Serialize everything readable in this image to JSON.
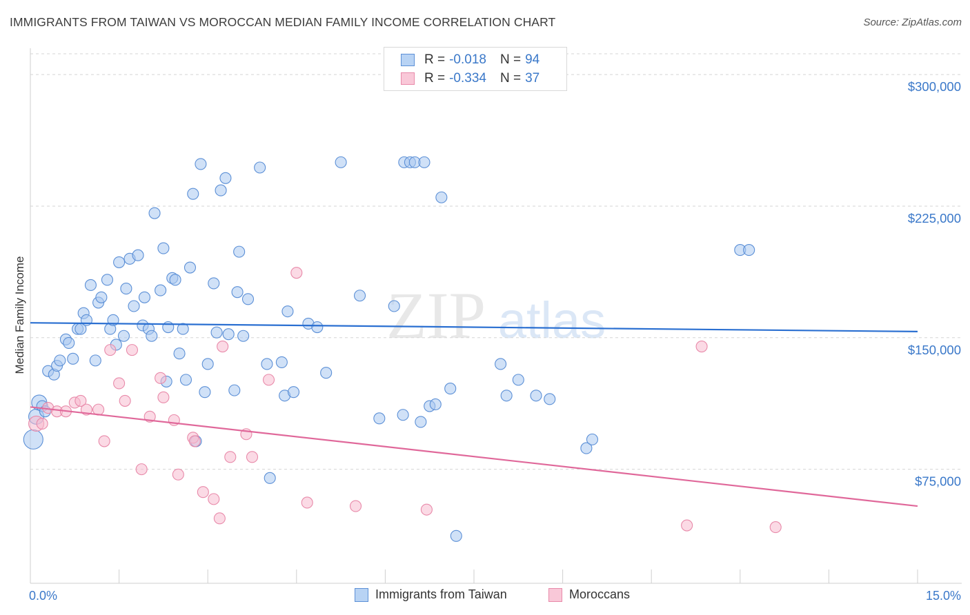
{
  "title": "IMMIGRANTS FROM TAIWAN VS MOROCCAN MEDIAN FAMILY INCOME CORRELATION CHART",
  "source": "Source: ZipAtlas.com",
  "watermark": {
    "zip": "ZIP",
    "atlas": "atlas"
  },
  "legend": {
    "rows": [
      {
        "r_label": "R =",
        "r_value": "-0.018",
        "n_label": "N =",
        "n_value": "94"
      },
      {
        "r_label": "R =",
        "r_value": "-0.334",
        "n_label": "N =",
        "n_value": "37"
      }
    ]
  },
  "bottom_legend": {
    "taiwan": "Immigrants from Taiwan",
    "moroccans": "Moroccans"
  },
  "colors": {
    "taiwan_fill": "#a9c8f0",
    "taiwan_stroke": "#5b8fd6",
    "taiwan_line": "#2a6fd1",
    "moroccan_fill": "#f7bcd0",
    "moroccan_stroke": "#e889a9",
    "moroccan_line": "#e0689a",
    "tick_text": "#3a78c9",
    "grid": "#d5d5d5"
  },
  "chart_data": {
    "type": "scatter",
    "title": "IMMIGRANTS FROM TAIWAN VS MOROCCAN MEDIAN FAMILY INCOME CORRELATION CHART",
    "xlabel": "",
    "ylabel": "Median Family Income",
    "xlim": [
      0,
      15
    ],
    "ylim": [
      10000,
      315000
    ],
    "x_tick_labels": [
      "0.0%",
      "15.0%"
    ],
    "y_ticks": [
      75000,
      150000,
      225000,
      300000
    ],
    "y_tick_labels": [
      "$75,000",
      "$150,000",
      "$225,000",
      "$300,000"
    ],
    "series": [
      {
        "name": "Immigrants from Taiwan",
        "R": -0.018,
        "N": 94,
        "trend": {
          "x": [
            0,
            15
          ],
          "y": [
            158500,
            153500
          ]
        },
        "points": [
          {
            "x": 0.05,
            "y": 92000,
            "s": 3
          },
          {
            "x": 0.1,
            "y": 105000,
            "s": 2
          },
          {
            "x": 0.15,
            "y": 113000,
            "s": 2
          },
          {
            "x": 0.2,
            "y": 111000,
            "s": 1
          },
          {
            "x": 0.25,
            "y": 108000,
            "s": 1
          },
          {
            "x": 0.3,
            "y": 131000,
            "s": 1
          },
          {
            "x": 0.4,
            "y": 129000,
            "s": 1
          },
          {
            "x": 0.45,
            "y": 134000,
            "s": 1
          },
          {
            "x": 0.5,
            "y": 137000,
            "s": 1
          },
          {
            "x": 0.6,
            "y": 149000,
            "s": 1
          },
          {
            "x": 0.65,
            "y": 147000,
            "s": 1
          },
          {
            "x": 0.72,
            "y": 138000,
            "s": 1
          },
          {
            "x": 0.8,
            "y": 155000,
            "s": 1
          },
          {
            "x": 0.85,
            "y": 155000,
            "s": 1
          },
          {
            "x": 0.9,
            "y": 164000,
            "s": 1
          },
          {
            "x": 0.95,
            "y": 160000,
            "s": 1
          },
          {
            "x": 1.02,
            "y": 180000,
            "s": 1
          },
          {
            "x": 1.1,
            "y": 137000,
            "s": 1
          },
          {
            "x": 1.15,
            "y": 170000,
            "s": 1
          },
          {
            "x": 1.2,
            "y": 173000,
            "s": 1
          },
          {
            "x": 1.3,
            "y": 183000,
            "s": 1
          },
          {
            "x": 1.35,
            "y": 155000,
            "s": 1
          },
          {
            "x": 1.4,
            "y": 160000,
            "s": 1
          },
          {
            "x": 1.45,
            "y": 146000,
            "s": 1
          },
          {
            "x": 1.5,
            "y": 193000,
            "s": 1
          },
          {
            "x": 1.58,
            "y": 151000,
            "s": 1
          },
          {
            "x": 1.62,
            "y": 178000,
            "s": 1
          },
          {
            "x": 1.68,
            "y": 195000,
            "s": 1
          },
          {
            "x": 1.75,
            "y": 168000,
            "s": 1
          },
          {
            "x": 1.82,
            "y": 197000,
            "s": 1
          },
          {
            "x": 1.9,
            "y": 157000,
            "s": 1
          },
          {
            "x": 1.93,
            "y": 173000,
            "s": 1
          },
          {
            "x": 2.0,
            "y": 155000,
            "s": 1
          },
          {
            "x": 2.05,
            "y": 151000,
            "s": 1
          },
          {
            "x": 2.1,
            "y": 221000,
            "s": 1
          },
          {
            "x": 2.2,
            "y": 177000,
            "s": 1
          },
          {
            "x": 2.25,
            "y": 201000,
            "s": 1
          },
          {
            "x": 2.3,
            "y": 125000,
            "s": 1
          },
          {
            "x": 2.33,
            "y": 156000,
            "s": 1
          },
          {
            "x": 2.4,
            "y": 184000,
            "s": 1
          },
          {
            "x": 2.45,
            "y": 183000,
            "s": 1
          },
          {
            "x": 2.52,
            "y": 141000,
            "s": 1
          },
          {
            "x": 2.58,
            "y": 155000,
            "s": 1
          },
          {
            "x": 2.63,
            "y": 126000,
            "s": 1
          },
          {
            "x": 2.7,
            "y": 190000,
            "s": 1
          },
          {
            "x": 2.75,
            "y": 232000,
            "s": 1
          },
          {
            "x": 2.8,
            "y": 91000,
            "s": 1
          },
          {
            "x": 2.88,
            "y": 249000,
            "s": 1
          },
          {
            "x": 2.95,
            "y": 119000,
            "s": 1
          },
          {
            "x": 3.0,
            "y": 135000,
            "s": 1
          },
          {
            "x": 3.1,
            "y": 181000,
            "s": 1
          },
          {
            "x": 3.15,
            "y": 153000,
            "s": 1
          },
          {
            "x": 3.22,
            "y": 234000,
            "s": 1
          },
          {
            "x": 3.3,
            "y": 241000,
            "s": 1
          },
          {
            "x": 3.35,
            "y": 152000,
            "s": 1
          },
          {
            "x": 3.45,
            "y": 120000,
            "s": 1
          },
          {
            "x": 3.5,
            "y": 176000,
            "s": 1
          },
          {
            "x": 3.53,
            "y": 199000,
            "s": 1
          },
          {
            "x": 3.6,
            "y": 151000,
            "s": 1
          },
          {
            "x": 3.68,
            "y": 172000,
            "s": 1
          },
          {
            "x": 3.88,
            "y": 247000,
            "s": 1
          },
          {
            "x": 4.0,
            "y": 135000,
            "s": 1
          },
          {
            "x": 4.05,
            "y": 70000,
            "s": 1
          },
          {
            "x": 4.25,
            "y": 136000,
            "s": 1
          },
          {
            "x": 4.3,
            "y": 117000,
            "s": 1
          },
          {
            "x": 4.35,
            "y": 165000,
            "s": 1
          },
          {
            "x": 4.45,
            "y": 119000,
            "s": 1
          },
          {
            "x": 4.7,
            "y": 158000,
            "s": 1
          },
          {
            "x": 4.85,
            "y": 156000,
            "s": 1
          },
          {
            "x": 5.0,
            "y": 130000,
            "s": 1
          },
          {
            "x": 5.25,
            "y": 250000,
            "s": 1
          },
          {
            "x": 5.57,
            "y": 174000,
            "s": 1
          },
          {
            "x": 5.9,
            "y": 104000,
            "s": 1
          },
          {
            "x": 6.15,
            "y": 168000,
            "s": 1
          },
          {
            "x": 6.3,
            "y": 106000,
            "s": 1
          },
          {
            "x": 6.32,
            "y": 250000,
            "s": 1
          },
          {
            "x": 6.42,
            "y": 250000,
            "s": 1
          },
          {
            "x": 6.5,
            "y": 250000,
            "s": 1
          },
          {
            "x": 6.6,
            "y": 102000,
            "s": 1
          },
          {
            "x": 6.66,
            "y": 250000,
            "s": 1
          },
          {
            "x": 6.75,
            "y": 111000,
            "s": 1
          },
          {
            "x": 6.85,
            "y": 112000,
            "s": 1
          },
          {
            "x": 6.95,
            "y": 230000,
            "s": 1
          },
          {
            "x": 7.1,
            "y": 121000,
            "s": 1
          },
          {
            "x": 7.2,
            "y": 37000,
            "s": 1
          },
          {
            "x": 7.95,
            "y": 135000,
            "s": 1
          },
          {
            "x": 8.05,
            "y": 117000,
            "s": 1
          },
          {
            "x": 8.25,
            "y": 126000,
            "s": 1
          },
          {
            "x": 8.55,
            "y": 117000,
            "s": 1
          },
          {
            "x": 8.78,
            "y": 115000,
            "s": 1
          },
          {
            "x": 9.4,
            "y": 87000,
            "s": 1
          },
          {
            "x": 9.5,
            "y": 92000,
            "s": 1
          },
          {
            "x": 12.0,
            "y": 200000,
            "s": 1
          },
          {
            "x": 12.15,
            "y": 200000,
            "s": 1
          }
        ]
      },
      {
        "name": "Moroccans",
        "R": -0.334,
        "N": 37,
        "trend": {
          "x": [
            0,
            15
          ],
          "y": [
            110500,
            54000
          ]
        },
        "points": [
          {
            "x": 0.1,
            "y": 101000,
            "s": 2
          },
          {
            "x": 0.2,
            "y": 101000,
            "s": 1
          },
          {
            "x": 0.3,
            "y": 110000,
            "s": 1
          },
          {
            "x": 0.45,
            "y": 108000,
            "s": 1
          },
          {
            "x": 0.6,
            "y": 108000,
            "s": 1
          },
          {
            "x": 0.75,
            "y": 113000,
            "s": 1
          },
          {
            "x": 0.85,
            "y": 114000,
            "s": 1
          },
          {
            "x": 0.95,
            "y": 109000,
            "s": 1
          },
          {
            "x": 1.15,
            "y": 109000,
            "s": 1
          },
          {
            "x": 1.25,
            "y": 91000,
            "s": 1
          },
          {
            "x": 1.35,
            "y": 143000,
            "s": 1
          },
          {
            "x": 1.5,
            "y": 124000,
            "s": 1
          },
          {
            "x": 1.6,
            "y": 114000,
            "s": 1
          },
          {
            "x": 1.72,
            "y": 143000,
            "s": 1
          },
          {
            "x": 1.88,
            "y": 75000,
            "s": 1
          },
          {
            "x": 2.02,
            "y": 105000,
            "s": 1
          },
          {
            "x": 2.2,
            "y": 127000,
            "s": 1
          },
          {
            "x": 2.25,
            "y": 116000,
            "s": 1
          },
          {
            "x": 2.43,
            "y": 103000,
            "s": 1
          },
          {
            "x": 2.5,
            "y": 72000,
            "s": 1
          },
          {
            "x": 2.75,
            "y": 93000,
            "s": 1
          },
          {
            "x": 2.78,
            "y": 91000,
            "s": 1
          },
          {
            "x": 2.92,
            "y": 62000,
            "s": 1
          },
          {
            "x": 3.1,
            "y": 58000,
            "s": 1
          },
          {
            "x": 3.2,
            "y": 47000,
            "s": 1
          },
          {
            "x": 3.25,
            "y": 145000,
            "s": 1
          },
          {
            "x": 3.38,
            "y": 82000,
            "s": 1
          },
          {
            "x": 3.65,
            "y": 95000,
            "s": 1
          },
          {
            "x": 3.75,
            "y": 82000,
            "s": 1
          },
          {
            "x": 4.03,
            "y": 126000,
            "s": 1
          },
          {
            "x": 4.5,
            "y": 187000,
            "s": 1
          },
          {
            "x": 4.68,
            "y": 56000,
            "s": 1
          },
          {
            "x": 5.5,
            "y": 54000,
            "s": 1
          },
          {
            "x": 6.7,
            "y": 52000,
            "s": 1
          },
          {
            "x": 11.1,
            "y": 43000,
            "s": 1
          },
          {
            "x": 11.35,
            "y": 145000,
            "s": 1
          },
          {
            "x": 12.6,
            "y": 42000,
            "s": 1
          }
        ]
      }
    ]
  }
}
